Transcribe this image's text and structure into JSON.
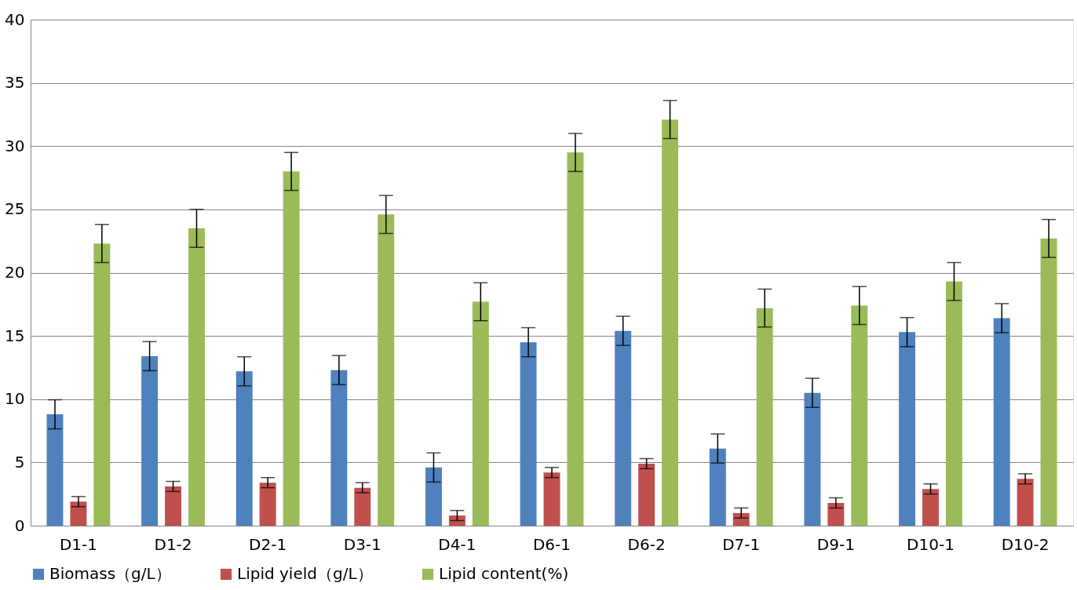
{
  "chart_data": {
    "type": "bar",
    "categories": [
      "D1-1",
      "D1-2",
      "D2-1",
      "D3-1",
      "D4-1",
      "D6-1",
      "D6-2",
      "D7-1",
      "D9-1",
      "D10-1",
      "D10-2"
    ],
    "series": [
      {
        "name": "Biomass（g/L）",
        "color": "#4f81bd",
        "values": [
          8.8,
          13.4,
          12.2,
          12.3,
          4.6,
          14.5,
          15.4,
          6.1,
          10.5,
          15.3,
          16.4
        ],
        "errors": [
          1.15,
          1.15,
          1.15,
          1.15,
          1.15,
          1.15,
          1.15,
          1.15,
          1.15,
          1.15,
          1.15
        ]
      },
      {
        "name": "Lipid yield（g/L）",
        "color": "#c0504d",
        "values": [
          1.9,
          3.1,
          3.4,
          3.0,
          0.8,
          4.2,
          4.9,
          1.0,
          1.8,
          2.9,
          3.7
        ],
        "errors": [
          0.4,
          0.4,
          0.4,
          0.4,
          0.4,
          0.4,
          0.4,
          0.4,
          0.4,
          0.4,
          0.4
        ]
      },
      {
        "name": "Lipid content(%)",
        "color": "#9bbb59",
        "values": [
          22.3,
          23.5,
          28.0,
          24.6,
          17.7,
          29.5,
          32.1,
          17.2,
          17.4,
          19.3,
          22.7
        ],
        "errors": [
          1.5,
          1.5,
          1.5,
          1.5,
          1.5,
          1.5,
          1.5,
          1.5,
          1.5,
          1.5,
          1.5
        ]
      }
    ],
    "ylim": [
      0,
      40
    ],
    "yticks": [
      0,
      5,
      10,
      15,
      20,
      25,
      30,
      35,
      40
    ],
    "grid": "y",
    "legend": "bottom"
  }
}
